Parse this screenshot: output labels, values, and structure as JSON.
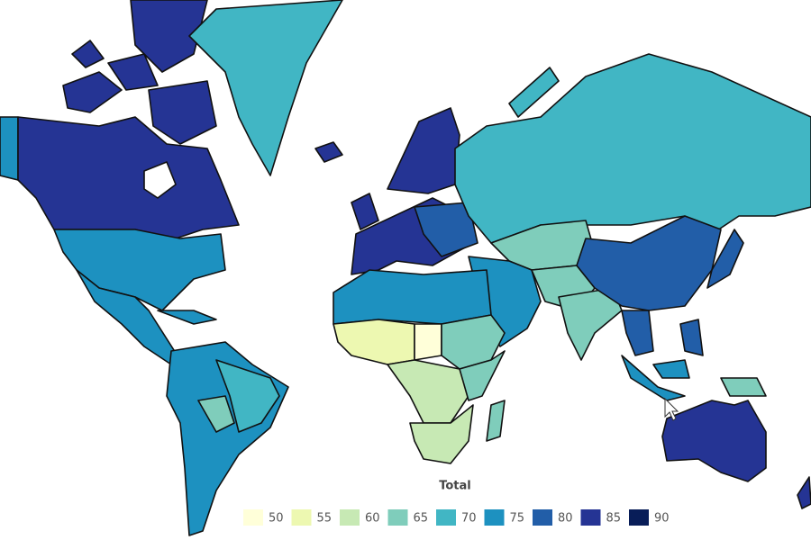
{
  "legend": {
    "title": "Total",
    "items": [
      {
        "label": 50,
        "color": "#ffffd9"
      },
      {
        "label": 55,
        "color": "#edf8b1"
      },
      {
        "label": 60,
        "color": "#c7e9b4"
      },
      {
        "label": 65,
        "color": "#7fcdbb"
      },
      {
        "label": 70,
        "color": "#41b6c4"
      },
      {
        "label": 75,
        "color": "#1d91c0"
      },
      {
        "label": 80,
        "color": "#225ea8"
      },
      {
        "label": 85,
        "color": "#253494"
      },
      {
        "label": 90,
        "color": "#081d58"
      }
    ]
  }
}
